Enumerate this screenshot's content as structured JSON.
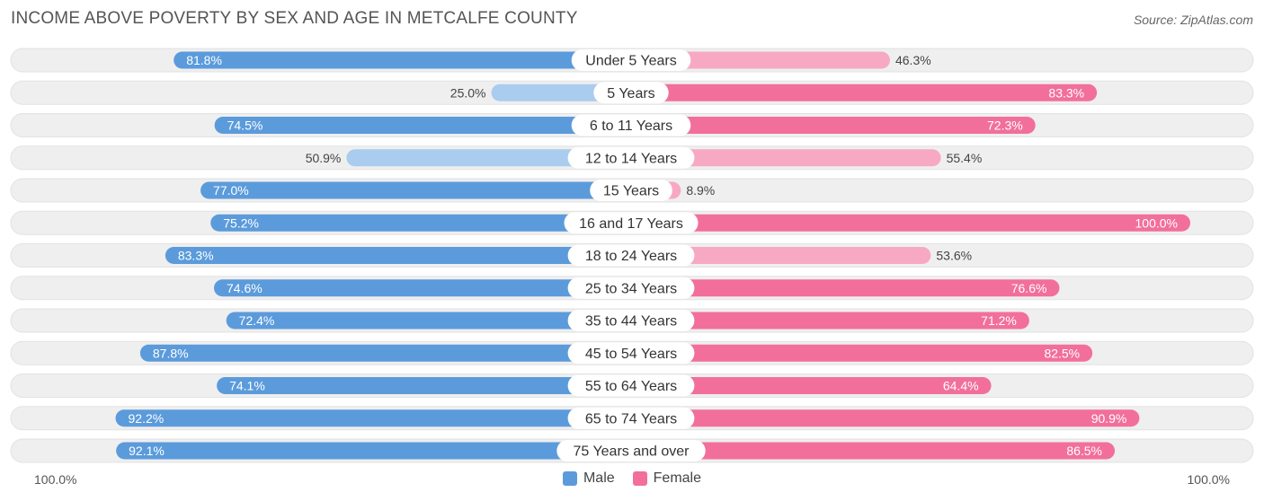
{
  "title": "INCOME ABOVE POVERTY BY SEX AND AGE IN METCALFE COUNTY",
  "source": "Source: ZipAtlas.com",
  "colors": {
    "male_strong": "#5b9bdb",
    "male_light": "#aaccee",
    "female_strong": "#f26f9b",
    "female_light": "#f7a9c4",
    "track": "#efefef"
  },
  "legend": {
    "male_label": "Male",
    "female_label": "Female"
  },
  "axis": {
    "left_label": "100.0%",
    "right_label": "100.0%"
  },
  "chart_data": {
    "type": "bar",
    "orientation": "horizontal-diverging",
    "title": "INCOME ABOVE POVERTY BY SEX AND AGE IN METCALFE COUNTY",
    "xlim": [
      -100,
      100
    ],
    "categories": [
      "Under 5 Years",
      "5 Years",
      "6 to 11 Years",
      "12 to 14 Years",
      "15 Years",
      "16 and 17 Years",
      "18 to 24 Years",
      "25 to 34 Years",
      "35 to 44 Years",
      "45 to 54 Years",
      "55 to 64 Years",
      "65 to 74 Years",
      "75 Years and over"
    ],
    "series": [
      {
        "name": "Male",
        "values": [
          81.8,
          25.0,
          74.5,
          50.9,
          77.0,
          75.2,
          83.3,
          74.6,
          72.4,
          87.8,
          74.1,
          92.2,
          92.1
        ],
        "labels": [
          "81.8%",
          "25.0%",
          "74.5%",
          "50.9%",
          "77.0%",
          "75.2%",
          "83.3%",
          "74.6%",
          "72.4%",
          "87.8%",
          "74.1%",
          "92.2%",
          "92.1%"
        ]
      },
      {
        "name": "Female",
        "values": [
          46.3,
          83.3,
          72.3,
          55.4,
          8.9,
          100.0,
          53.6,
          76.6,
          71.2,
          82.5,
          64.4,
          90.9,
          86.5
        ],
        "labels": [
          "46.3%",
          "83.3%",
          "72.3%",
          "55.4%",
          "8.9%",
          "100.0%",
          "53.6%",
          "76.6%",
          "71.2%",
          "82.5%",
          "64.4%",
          "90.9%",
          "86.5%"
        ]
      }
    ]
  }
}
